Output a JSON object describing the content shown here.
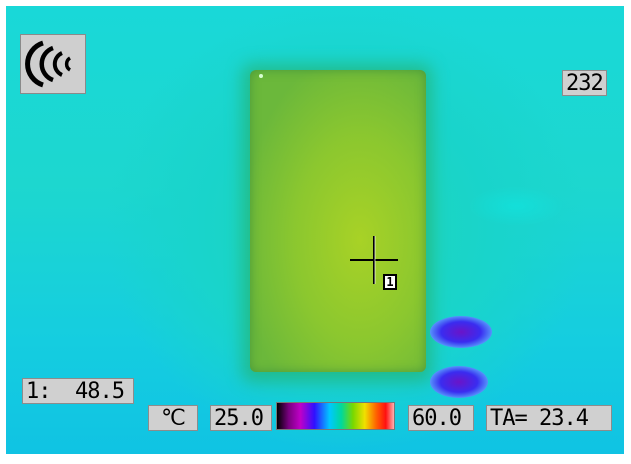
{
  "display": {
    "frame_count": "232",
    "spot_readout": "1:  48.5",
    "unit_symbol": "℃",
    "range_min": "25.0",
    "range_max": "60.0",
    "ambient": "TA= 23.4",
    "spot_marker": "1"
  },
  "icons": {
    "mode_icon": "signal-waves-icon",
    "crosshair": "crosshair-icon"
  },
  "colors": {
    "background": "#19d6d6",
    "hot_plate": "#a8d226",
    "cold_spot": "#5a18c8",
    "label_bg": "#d0d0d0"
  }
}
